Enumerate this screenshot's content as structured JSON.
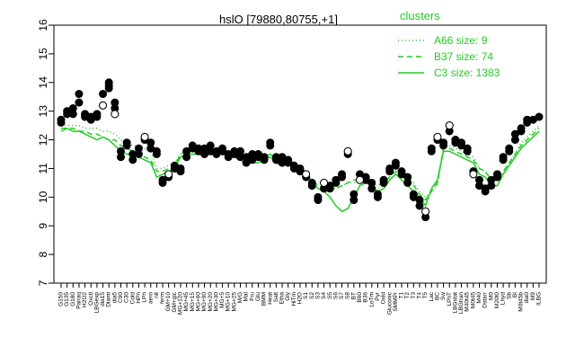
{
  "chart_data": {
    "type": "line",
    "title": "hslO [79880,80755,+1]",
    "xlabel": "",
    "ylabel": "",
    "ylim": [
      7,
      16
    ],
    "yticks": [
      7,
      8,
      9,
      10,
      11,
      12,
      13,
      14,
      15,
      16
    ],
    "grid": false,
    "legend_title": "clusters",
    "legend_position": "top-right",
    "legend_color": "#22cc22",
    "point_color": "#000000",
    "categories": [
      "G150",
      "G135",
      "G180",
      "Pairaq",
      "H2O2",
      "Oxctl",
      "LBGexp",
      "dia15",
      "Diami",
      "dia5",
      "C90",
      "C30",
      "Cold",
      "HPh",
      "LPh",
      "aero",
      "nit",
      "ferm",
      "GM+10",
      "GM+glc",
      "MG+120",
      "MG+45",
      "MG+15",
      "MG+60",
      "MG+90",
      "MG+20",
      "MG+30",
      "MG+5",
      "MG+10",
      "MG+25",
      "M/G",
      "Mal",
      "Fru",
      "Glu",
      "BMM",
      "Heat",
      "Salt",
      "Etha",
      "Gly",
      "HiTm",
      "H2O",
      "S1",
      "S2",
      "S3",
      "S4",
      "S5",
      "S6",
      "S7",
      "S8",
      "BT",
      "B60",
      "B36",
      "LoTm",
      "Pyr",
      "Oxid",
      "Gluconic",
      "SMMPr",
      "T1",
      "T2",
      "T3",
      "T4",
      "T5",
      "Lac",
      "BC",
      "Sw",
      "LPhT",
      "LBGstat",
      "LBGtran",
      "M40t45",
      "M0t45",
      "M40",
      "Dstarr",
      "M0",
      "M20t0",
      "Lhyd",
      "Sb",
      "BI",
      "M0t45b",
      "dia0",
      "M9",
      "ILBG"
    ],
    "series": [
      {
        "name": "A66 size: 9",
        "style": "dotted",
        "values": [
          12.5,
          12.5,
          12.5,
          12.5,
          12.4,
          12.4,
          12.4,
          12.3,
          12.3,
          12.2,
          12.0,
          11.9,
          11.8,
          11.8,
          11.7,
          11.6,
          11.0,
          11.0,
          11.1,
          11.2,
          11.5,
          11.6,
          11.6,
          11.6,
          11.6,
          11.6,
          11.6,
          11.6,
          11.5,
          11.5,
          11.4,
          11.3,
          11.3,
          11.3,
          11.4,
          11.5,
          11.4,
          11.2,
          11.1,
          11.0,
          10.9,
          10.8,
          10.6,
          10.4,
          10.3,
          10.3,
          10.3,
          10.4,
          10.5,
          10.5,
          10.5,
          10.5,
          10.4,
          10.3,
          10.4,
          10.6,
          10.8,
          10.8,
          10.7,
          10.5,
          10.2,
          10.0,
          10.2,
          10.4,
          11.8,
          11.8,
          11.7,
          11.6,
          11.5,
          11.4,
          11.0,
          10.9,
          10.6,
          10.6,
          10.8,
          11.2,
          11.5,
          11.9,
          12.1,
          12.3,
          12.5
        ]
      },
      {
        "name": "B37 size: 74",
        "style": "dashed",
        "values": [
          12.4,
          12.4,
          12.4,
          12.3,
          12.3,
          12.2,
          12.2,
          12.1,
          12.0,
          12.0,
          11.8,
          11.7,
          11.6,
          11.5,
          11.4,
          11.3,
          10.9,
          10.9,
          11.0,
          11.1,
          11.5,
          11.6,
          11.6,
          11.6,
          11.6,
          11.6,
          11.6,
          11.6,
          11.5,
          11.5,
          11.4,
          11.3,
          11.3,
          11.3,
          11.4,
          11.5,
          11.3,
          11.2,
          11.1,
          11.0,
          10.9,
          10.8,
          10.6,
          10.4,
          10.3,
          10.3,
          10.3,
          10.4,
          10.5,
          10.6,
          10.6,
          10.6,
          10.5,
          10.4,
          10.5,
          10.7,
          10.9,
          10.8,
          10.7,
          10.4,
          10.1,
          9.9,
          10.2,
          10.5,
          11.7,
          11.7,
          11.6,
          11.5,
          11.4,
          11.3,
          11.0,
          10.9,
          10.6,
          10.6,
          10.9,
          11.2,
          11.5,
          11.8,
          12.0,
          12.2,
          12.4
        ]
      },
      {
        "name": "C3 size: 1383",
        "style": "solid",
        "values": [
          12.3,
          12.4,
          12.3,
          12.3,
          12.2,
          12.1,
          12.0,
          12.1,
          12.0,
          11.8,
          11.6,
          11.5,
          11.5,
          11.4,
          11.3,
          11.2,
          10.7,
          10.8,
          10.9,
          11.0,
          11.4,
          11.5,
          11.5,
          11.5,
          11.5,
          11.5,
          11.5,
          11.5,
          11.4,
          11.4,
          11.3,
          11.2,
          11.2,
          11.2,
          11.3,
          11.4,
          11.2,
          11.1,
          11.3,
          11.2,
          11.0,
          10.9,
          10.5,
          10.3,
          10.2,
          10.0,
          9.7,
          9.5,
          9.6,
          10.0,
          10.4,
          10.5,
          10.4,
          10.2,
          10.3,
          10.6,
          10.8,
          10.6,
          10.4,
          10.2,
          10.0,
          9.7,
          10.3,
          10.6,
          11.6,
          11.6,
          11.5,
          11.4,
          11.3,
          11.2,
          10.8,
          10.7,
          10.4,
          10.4,
          10.8,
          11.1,
          11.4,
          11.7,
          11.9,
          12.1,
          12.3
        ]
      }
    ],
    "points": [
      [
        0,
        12.7
      ],
      [
        0,
        12.6
      ],
      [
        1,
        12.9
      ],
      [
        1,
        13.0
      ],
      [
        2,
        13.1
      ],
      [
        2,
        12.9
      ],
      [
        3,
        13.3
      ],
      [
        3,
        13.6
      ],
      [
        4,
        12.8
      ],
      [
        4,
        12.9
      ],
      [
        5,
        12.7
      ],
      [
        5,
        12.8
      ],
      [
        6,
        12.8
      ],
      [
        6,
        12.9
      ],
      [
        7,
        13.2
      ],
      [
        7,
        13.6
      ],
      [
        8,
        13.9
      ],
      [
        8,
        14.0
      ],
      [
        8,
        13.8
      ],
      [
        9,
        13.3
      ],
      [
        9,
        13.1
      ],
      [
        9,
        12.9
      ],
      [
        10,
        11.4
      ],
      [
        10,
        11.6
      ],
      [
        11,
        11.9
      ],
      [
        11,
        11.8
      ],
      [
        12,
        11.5
      ],
      [
        12,
        11.3
      ],
      [
        13,
        11.5
      ],
      [
        13,
        11.7
      ],
      [
        14,
        12.0
      ],
      [
        14,
        12.1
      ],
      [
        15,
        11.9
      ],
      [
        15,
        11.7
      ],
      [
        16,
        11.5
      ],
      [
        16,
        11.6
      ],
      [
        17,
        10.5
      ],
      [
        17,
        10.6
      ],
      [
        18,
        10.7
      ],
      [
        18,
        10.8
      ],
      [
        19,
        11.0
      ],
      [
        19,
        11.1
      ],
      [
        20,
        11.0
      ],
      [
        20,
        10.9
      ],
      [
        21,
        11.4
      ],
      [
        21,
        11.6
      ],
      [
        22,
        11.7
      ],
      [
        22,
        11.8
      ],
      [
        23,
        11.6
      ],
      [
        23,
        11.7
      ],
      [
        24,
        11.5
      ],
      [
        24,
        11.7
      ],
      [
        25,
        11.6
      ],
      [
        25,
        11.8
      ],
      [
        26,
        11.5
      ],
      [
        26,
        11.6
      ],
      [
        27,
        11.6
      ],
      [
        27,
        11.7
      ],
      [
        28,
        11.5
      ],
      [
        28,
        11.4
      ],
      [
        29,
        11.6
      ],
      [
        29,
        11.5
      ],
      [
        30,
        11.4
      ],
      [
        30,
        11.6
      ],
      [
        31,
        11.4
      ],
      [
        31,
        11.2
      ],
      [
        32,
        11.5
      ],
      [
        32,
        11.3
      ],
      [
        33,
        11.5
      ],
      [
        33,
        11.4
      ],
      [
        34,
        11.4
      ],
      [
        34,
        11.3
      ],
      [
        35,
        11.9
      ],
      [
        35,
        11.8
      ],
      [
        36,
        11.3
      ],
      [
        36,
        11.4
      ],
      [
        37,
        11.4
      ],
      [
        37,
        11.2
      ],
      [
        38,
        11.3
      ],
      [
        38,
        11.2
      ],
      [
        39,
        11.1
      ],
      [
        39,
        11.0
      ],
      [
        40,
        10.9
      ],
      [
        40,
        11.0
      ],
      [
        41,
        10.7
      ],
      [
        41,
        10.8
      ],
      [
        42,
        10.4
      ],
      [
        42,
        10.5
      ],
      [
        43,
        10.0
      ],
      [
        43,
        9.9
      ],
      [
        44,
        10.3
      ],
      [
        44,
        10.5
      ],
      [
        45,
        10.4
      ],
      [
        45,
        10.3
      ],
      [
        46,
        10.5
      ],
      [
        46,
        10.6
      ],
      [
        47,
        10.8
      ],
      [
        47,
        10.7
      ],
      [
        48,
        11.6
      ],
      [
        48,
        11.5
      ],
      [
        49,
        9.9
      ],
      [
        49,
        10.1
      ],
      [
        50,
        10.6
      ],
      [
        50,
        10.8
      ],
      [
        51,
        10.7
      ],
      [
        51,
        10.6
      ],
      [
        52,
        10.3
      ],
      [
        52,
        10.5
      ],
      [
        53,
        10.0
      ],
      [
        53,
        10.1
      ],
      [
        54,
        10.6
      ],
      [
        54,
        10.5
      ],
      [
        55,
        11.0
      ],
      [
        55,
        10.9
      ],
      [
        56,
        11.1
      ],
      [
        56,
        11.2
      ],
      [
        57,
        10.9
      ],
      [
        57,
        10.8
      ],
      [
        58,
        10.5
      ],
      [
        58,
        10.7
      ],
      [
        59,
        10.0
      ],
      [
        59,
        10.1
      ],
      [
        60,
        9.7
      ],
      [
        60,
        9.9
      ],
      [
        61,
        9.5
      ],
      [
        61,
        9.3
      ],
      [
        62,
        11.6
      ],
      [
        62,
        11.7
      ],
      [
        63,
        12.0
      ],
      [
        63,
        12.1
      ],
      [
        64,
        11.8
      ],
      [
        64,
        11.9
      ],
      [
        65,
        12.3
      ],
      [
        65,
        12.5
      ],
      [
        66,
        11.9
      ],
      [
        66,
        12.0
      ],
      [
        67,
        11.8
      ],
      [
        67,
        11.9
      ],
      [
        68,
        11.7
      ],
      [
        68,
        11.6
      ],
      [
        69,
        10.9
      ],
      [
        69,
        10.8
      ],
      [
        70,
        10.6
      ],
      [
        70,
        10.4
      ],
      [
        71,
        10.2
      ],
      [
        71,
        10.3
      ],
      [
        72,
        10.4
      ],
      [
        72,
        10.6
      ],
      [
        73,
        10.7
      ],
      [
        73,
        10.8
      ],
      [
        74,
        11.3
      ],
      [
        74,
        11.4
      ],
      [
        75,
        11.6
      ],
      [
        75,
        11.7
      ],
      [
        76,
        12.0
      ],
      [
        76,
        12.2
      ],
      [
        77,
        12.4
      ],
      [
        77,
        12.3
      ],
      [
        78,
        12.7
      ],
      [
        78,
        12.6
      ],
      [
        79,
        12.7
      ],
      [
        80,
        12.8
      ]
    ]
  }
}
